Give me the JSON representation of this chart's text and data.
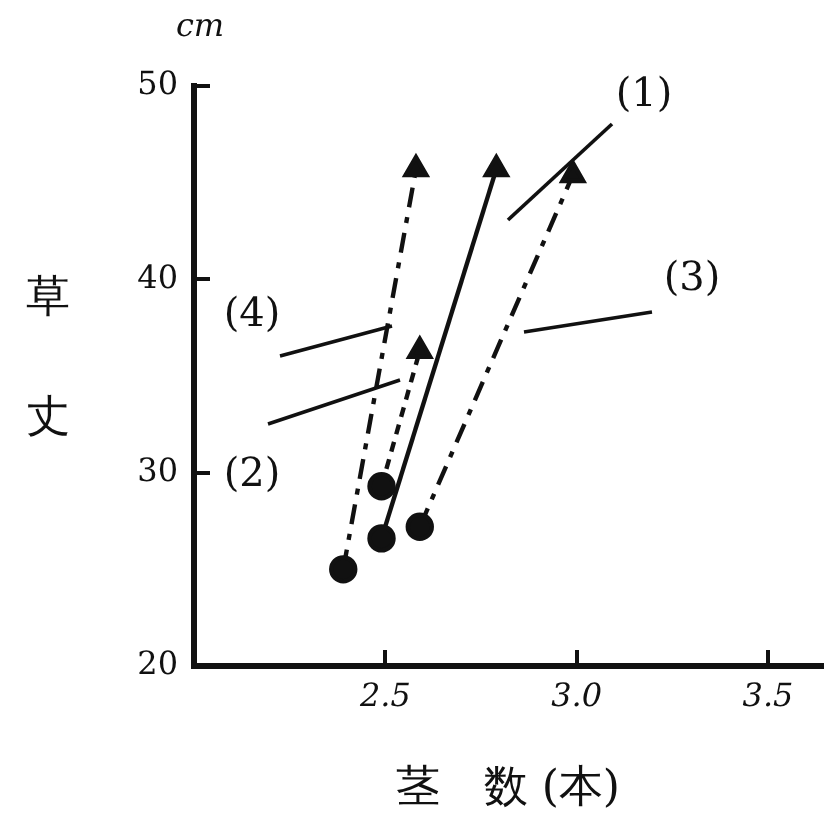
{
  "chart_data": {
    "type": "line",
    "xlabel": "茎　数 (本)",
    "ylabel": "草丈",
    "annotations": [
      "cm"
    ],
    "xlim": [
      2.0,
      3.64
    ],
    "xticks": [
      2.5,
      {
        "value": 3.0,
        "label": "3.0"
      },
      3.5
    ],
    "ylim": [
      20,
      50
    ],
    "yticks": [
      20,
      30,
      40,
      50
    ],
    "grid": false,
    "legend": false,
    "marker": "circle",
    "series": [
      {
        "name": "(1)",
        "color": "#111111",
        "x": [
          2.49,
          2.79
        ],
        "values": [
          26.6,
          45.7
        ],
        "line_style": "solid"
      },
      {
        "name": "(2)",
        "color": "#111111",
        "x": [
          2.49,
          2.59
        ],
        "values": [
          29.3,
          36.3
        ],
        "line_style": "dotted"
      },
      {
        "name": "(3)",
        "color": "#111111",
        "x": [
          2.59,
          2.99
        ],
        "values": [
          27.2,
          45.4
        ],
        "line_style": "dashed"
      },
      {
        "name": "(4)",
        "color": "#111111",
        "x": [
          2.39,
          2.58
        ],
        "values": [
          25.0,
          45.7
        ],
        "line_style": "dashed"
      }
    ]
  }
}
